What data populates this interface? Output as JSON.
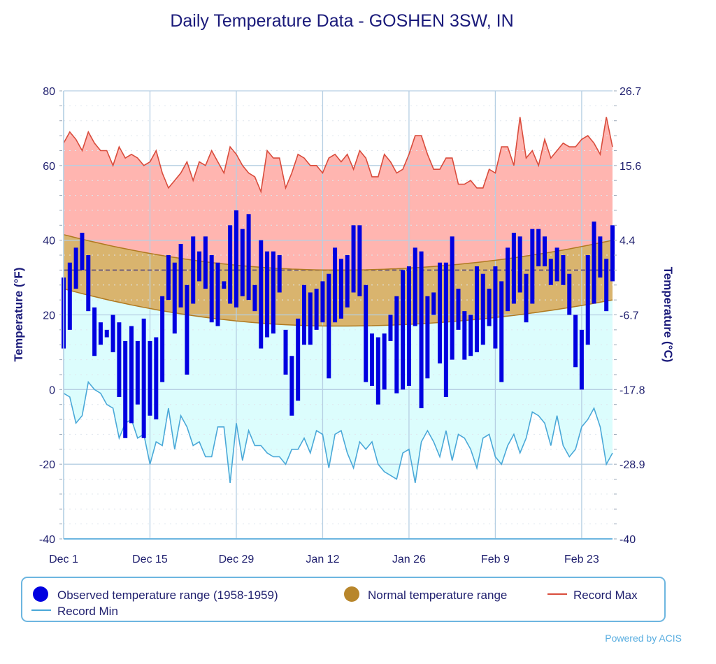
{
  "chart_data": {
    "type": "bar",
    "title": "Daily Temperature Data - GOSHEN 3SW, IN",
    "xlabel": "",
    "ylabel": "Temperature (°F)",
    "ylabel_right": "Temperature (°C)",
    "ylim": [
      -40,
      80
    ],
    "yticks": [
      80,
      60,
      40,
      20,
      0,
      -20,
      -40
    ],
    "yticks_right": [
      "26.7",
      "15.6",
      "4.4",
      "-6.7",
      "-17.8",
      "-28.9",
      "-40"
    ],
    "x_start": "Dec 1",
    "x_tick_labels": [
      "Dec 1",
      "Dec 15",
      "Dec 29",
      "Jan 12",
      "Jan 26",
      "Feb 9",
      "Feb 23"
    ],
    "x_tick_days": [
      0,
      14,
      28,
      42,
      56,
      70,
      84
    ],
    "num_days": 90,
    "freezing_line": 32,
    "grid": true,
    "legend_position": "bottom",
    "series": [
      {
        "name": "Observed temperature range (1958-1959)",
        "color": "#0000e0",
        "high": [
          30,
          34,
          38,
          42,
          36,
          22,
          18,
          16,
          20,
          18,
          13,
          17,
          13,
          19,
          13,
          14,
          25,
          36,
          34,
          39,
          28,
          41,
          37,
          41,
          36,
          34,
          29,
          44,
          48,
          43,
          47,
          28,
          40,
          37,
          37,
          36,
          16,
          9,
          19,
          28,
          26,
          27,
          29,
          31,
          38,
          35,
          36,
          44,
          44,
          28,
          15,
          14,
          15,
          20,
          25,
          32,
          33,
          38,
          37,
          25,
          26,
          34,
          34,
          41,
          27,
          21,
          20,
          33,
          31,
          27,
          33,
          29,
          38,
          42,
          41,
          31,
          43,
          43,
          41,
          35,
          38,
          36,
          31,
          20,
          16,
          36,
          45,
          41,
          35,
          44
        ],
        "low": [
          11,
          16,
          27,
          32,
          21,
          9,
          12,
          14,
          10,
          -2,
          -13,
          -9,
          -4,
          -13,
          -7,
          -8,
          2,
          24,
          15,
          22,
          4,
          23,
          29,
          27,
          18,
          17,
          27,
          23,
          22,
          25,
          24,
          21,
          11,
          14,
          15,
          26,
          4,
          -7,
          -3,
          12,
          12,
          16,
          18,
          3,
          18,
          19,
          22,
          26,
          25,
          2,
          1,
          -4,
          0,
          13,
          -1,
          0,
          1,
          17,
          -5,
          3,
          20,
          7,
          -2,
          8,
          16,
          8,
          9,
          10,
          12,
          17,
          11,
          2,
          21,
          23,
          26,
          18,
          23,
          33,
          33,
          28,
          29,
          28,
          20,
          6,
          0,
          12,
          23,
          30,
          21,
          29
        ]
      },
      {
        "name": "Normal temperature range",
        "color": "#b8862b",
        "high_start": 41.5,
        "high_min": 32,
        "high_end": 40,
        "low_start": 27,
        "low_min": 17,
        "low_end": 24
      },
      {
        "name": "Record Max",
        "color": "#d94c3c",
        "values": [
          66,
          69,
          67,
          64,
          69,
          66,
          64,
          64,
          60,
          65,
          62,
          63,
          62,
          60,
          61,
          64,
          58,
          54,
          56,
          58,
          61,
          56,
          61,
          60,
          64,
          61,
          58,
          65,
          63,
          60,
          58,
          57,
          53,
          64,
          62,
          62,
          54,
          58,
          63,
          62,
          60,
          60,
          58,
          62,
          63,
          61,
          63,
          59,
          64,
          62,
          57,
          57,
          63,
          61,
          58,
          59,
          63,
          68,
          68,
          63,
          59,
          59,
          62,
          62,
          55,
          55,
          56,
          54,
          54,
          59,
          58,
          65,
          65,
          60,
          73,
          62,
          64,
          60,
          67,
          62,
          64,
          66,
          65,
          65,
          67,
          68,
          66,
          63,
          73,
          65
        ],
        "values_tail": [
          71,
          63
        ]
      },
      {
        "name": "Record Min",
        "color": "#4aa8d8",
        "values": [
          -1,
          -2,
          -9,
          -7,
          2,
          0,
          -1,
          -4,
          -5,
          -13,
          -9,
          -8,
          -13,
          -12,
          -20,
          -14,
          -15,
          -5,
          -16,
          -7,
          -10,
          -15,
          -14,
          -18,
          -18,
          -10,
          -10,
          -25,
          -9,
          -19,
          -11,
          -15,
          -15,
          -17,
          -18,
          -18,
          -20,
          -16,
          -16,
          -13,
          -17,
          -11,
          -12,
          -21,
          -12,
          -11,
          -17,
          -21,
          -14,
          -16,
          -14,
          -20,
          -22,
          -23,
          -24,
          -17,
          -16,
          -25,
          -14,
          -11,
          -14,
          -18,
          -11,
          -19,
          -12,
          -13,
          -16,
          -21,
          -13,
          -12,
          -18,
          -20,
          -15,
          -12,
          -17,
          -13,
          -6,
          -7,
          -9,
          -15,
          -7,
          -15,
          -18,
          -16,
          -10,
          -8,
          -5,
          -10,
          -20,
          -17
        ],
        "values_tail": [
          -8
        ]
      }
    ],
    "credit": "Powered by ACIS"
  },
  "legend": {
    "observed": "Observed temperature range (1958-1959)",
    "normal": "Normal temperature range",
    "record_max": "Record Max",
    "record_min": "Record Min"
  }
}
